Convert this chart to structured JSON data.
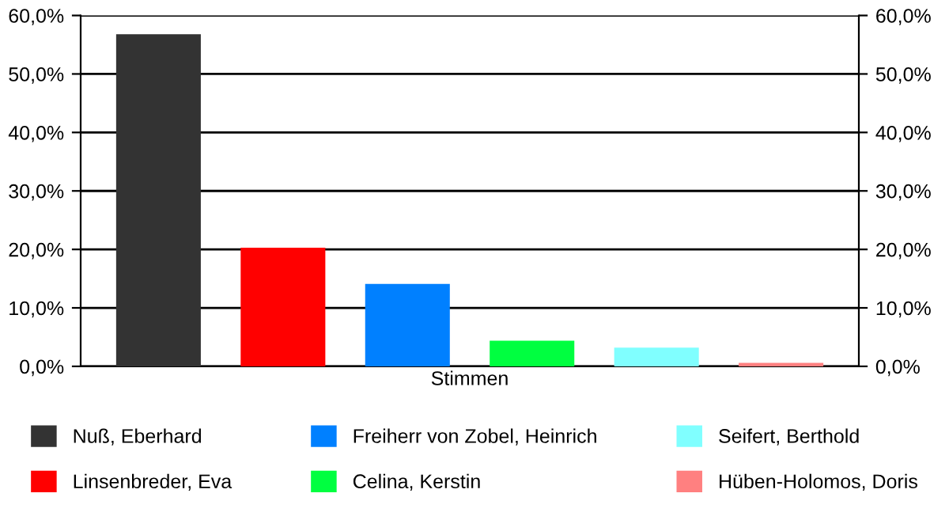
{
  "chart_data": {
    "type": "bar",
    "categories": [
      "Stimmen"
    ],
    "series": [
      {
        "name": "Nuß, Eberhard",
        "color": "#333333",
        "values": [
          56.8
        ]
      },
      {
        "name": "Linsenbreder, Eva",
        "color": "#ff0000",
        "values": [
          20.3
        ]
      },
      {
        "name": "Freiherr von Zobel, Heinrich",
        "color": "#0080ff",
        "values": [
          14.1
        ]
      },
      {
        "name": "Celina, Kerstin",
        "color": "#00ff40",
        "values": [
          4.4
        ]
      },
      {
        "name": "Seifert, Berthold",
        "color": "#80ffff",
        "values": [
          3.2
        ]
      },
      {
        "name": "Hüben-Holomos, Doris",
        "color": "#ff8080",
        "values": [
          0.6
        ]
      }
    ],
    "ylim": [
      0,
      60
    ],
    "yticks": [
      {
        "value": 0,
        "label": "0,0%"
      },
      {
        "value": 10,
        "label": "10,0%"
      },
      {
        "value": 20,
        "label": "20,0%"
      },
      {
        "value": 30,
        "label": "30,0%"
      },
      {
        "value": 40,
        "label": "40,0%"
      },
      {
        "value": 50,
        "label": "50,0%"
      },
      {
        "value": 60,
        "label": "60,0%"
      }
    ],
    "grid": "y",
    "legend": "bottom"
  }
}
